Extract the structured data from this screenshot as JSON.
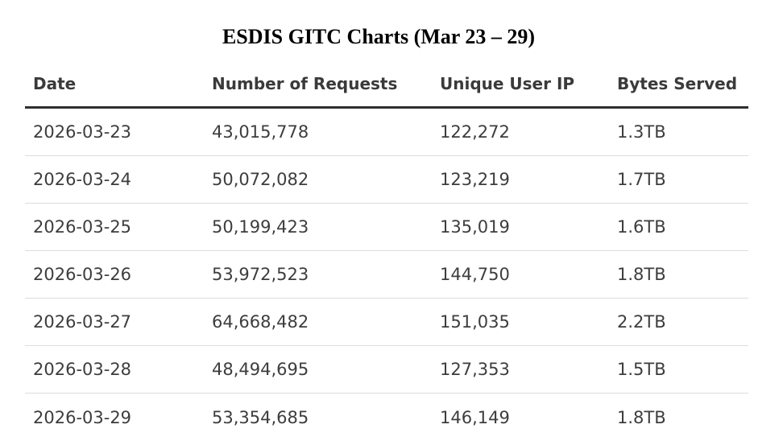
{
  "title": "ESDIS GITC Charts (Mar 23 – 29)",
  "chart_data": {
    "type": "table",
    "title": "ESDIS GITC Charts (Mar 23 – 29)",
    "columns": [
      "Date",
      "Number of Requests",
      "Unique User IP",
      "Bytes Served"
    ],
    "rows": [
      [
        "2026-03-23",
        "43,015,778",
        "122,272",
        "1.3TB"
      ],
      [
        "2026-03-24",
        "50,072,082",
        "123,219",
        "1.7TB"
      ],
      [
        "2026-03-25",
        "50,199,423",
        "135,019",
        "1.6TB"
      ],
      [
        "2026-03-26",
        "53,972,523",
        "144,750",
        "1.8TB"
      ],
      [
        "2026-03-27",
        "64,668,482",
        "151,035",
        "2.2TB"
      ],
      [
        "2026-03-28",
        "48,494,695",
        "127,353",
        "1.5TB"
      ],
      [
        "2026-03-29",
        "53,354,685",
        "146,149",
        "1.8TB"
      ]
    ]
  }
}
